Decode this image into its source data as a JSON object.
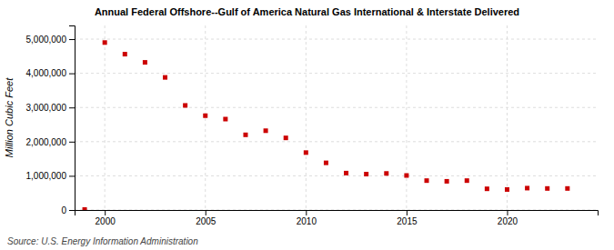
{
  "chart_data": {
    "type": "scatter",
    "title": "Annual Federal Offshore--Gulf of America Natural Gas International & Interstate Delivered",
    "ylabel": "Million Cubic Feet",
    "annotations": [
      "Source: U.S. Energy Information Administration"
    ],
    "x": [
      1999,
      2000,
      2001,
      2002,
      2003,
      2004,
      2005,
      2006,
      2007,
      2008,
      2009,
      2010,
      2011,
      2012,
      2013,
      2014,
      2015,
      2016,
      2017,
      2018,
      2019,
      2020,
      2021,
      2022,
      2023
    ],
    "values": [
      15000,
      4900000,
      4560000,
      4320000,
      3880000,
      3060000,
      2760000,
      2660000,
      2200000,
      2320000,
      2110000,
      1680000,
      1380000,
      1080000,
      1050000,
      1070000,
      1010000,
      860000,
      840000,
      860000,
      620000,
      600000,
      640000,
      630000,
      630000
    ],
    "color": "#cc0000",
    "marker": "square",
    "xlim": [
      1998.5,
      2024.5
    ],
    "xticks": [
      2000,
      2005,
      2010,
      2015,
      2020
    ],
    "ylim": [
      0,
      5400000
    ],
    "yticks": [
      0,
      {
        "value": 1000000,
        "label": "1,000,000"
      },
      {
        "value": 2000000,
        "label": "2,000,000"
      },
      {
        "value": 3000000,
        "label": "3,000,000"
      },
      {
        "value": 4000000,
        "label": "4,000,000"
      },
      {
        "value": 5000000,
        "label": "5,000,000"
      }
    ],
    "grid": true
  }
}
